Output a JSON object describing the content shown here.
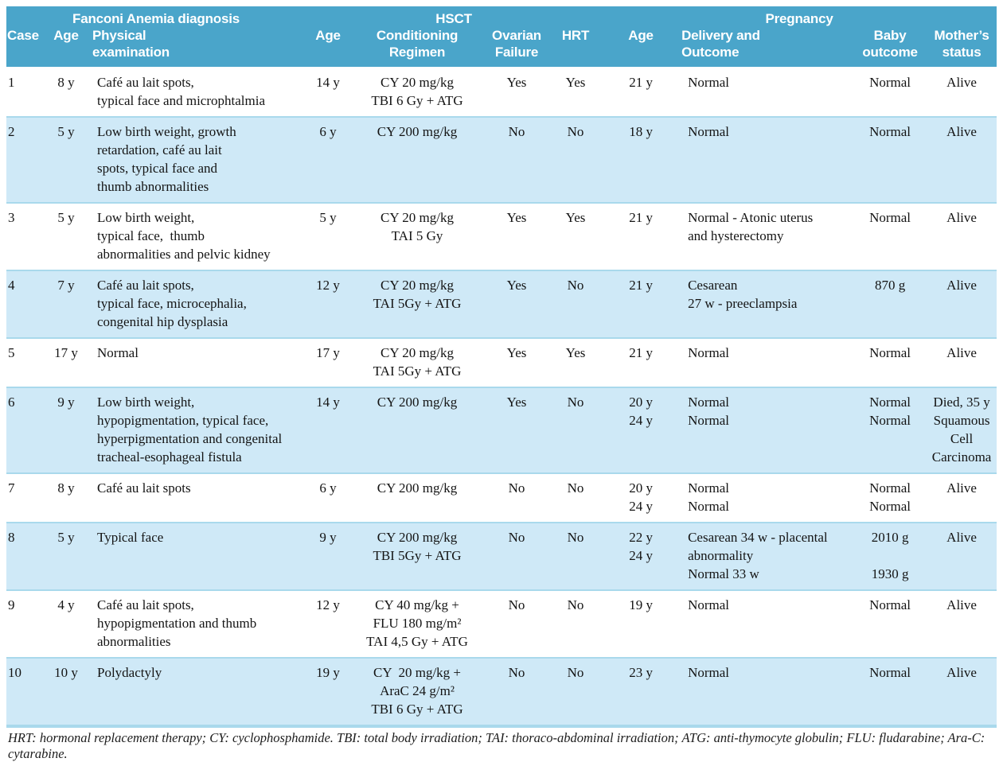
{
  "colors": {
    "header_bg": "#4aa5ca",
    "header_text": "#ffffff",
    "row_shade": "#cfe9f7",
    "row_plain": "#ffffff",
    "row_divider": "#a9d9ec",
    "bottom_rule": "#a9d9ec",
    "body_text": "#141414"
  },
  "table": {
    "group_headers": [
      {
        "label": "Fanconi Anemia diagnosis",
        "colspan": 3
      },
      {
        "label": "HSCT",
        "colspan": 4
      },
      {
        "label": "Pregnancy",
        "colspan": 4
      }
    ],
    "columns": [
      {
        "key": "case",
        "label": "Case",
        "align": "left"
      },
      {
        "key": "fa_age",
        "label": "Age",
        "align": "center"
      },
      {
        "key": "physical",
        "label": "Physical\nexamination",
        "align": "left"
      },
      {
        "key": "hsct_age",
        "label": "Age",
        "align": "center"
      },
      {
        "key": "regimen",
        "label": "Conditioning\nRegimen",
        "align": "center"
      },
      {
        "key": "ovarian_failure",
        "label": "Ovarian\nFailure",
        "align": "center"
      },
      {
        "key": "hrt",
        "label": "HRT",
        "align": "center"
      },
      {
        "key": "preg_age",
        "label": "Age",
        "align": "center"
      },
      {
        "key": "delivery",
        "label": "Delivery and\nOutcome",
        "align": "left"
      },
      {
        "key": "baby",
        "label": "Baby\noutcome",
        "align": "center"
      },
      {
        "key": "mother",
        "label": "Mother’s\nstatus",
        "align": "center"
      }
    ],
    "rows": [
      {
        "case": "1",
        "fa_age": "8 y",
        "physical": [
          "Café au lait spots,",
          "typical face and microphtalmia"
        ],
        "hsct_age": "14 y",
        "regimen": [
          "CY 20 mg/kg",
          "TBI 6 Gy + ATG"
        ],
        "ovarian_failure": "Yes",
        "hrt": "Yes",
        "preg_age": [
          "21 y"
        ],
        "delivery": [
          "Normal"
        ],
        "baby": [
          "Normal"
        ],
        "mother": [
          "Alive"
        ],
        "shaded": false
      },
      {
        "case": "2",
        "fa_age": "5 y",
        "physical": [
          "Low birth weight, growth",
          "retardation, café au lait",
          "spots, typical face and",
          "thumb abnormalities"
        ],
        "hsct_age": "6 y",
        "regimen": [
          "CY 200 mg/kg"
        ],
        "ovarian_failure": "No",
        "hrt": "No",
        "preg_age": [
          "18 y"
        ],
        "delivery": [
          "Normal"
        ],
        "baby": [
          "Normal"
        ],
        "mother": [
          "Alive"
        ],
        "shaded": true
      },
      {
        "case": "3",
        "fa_age": "5 y",
        "physical": [
          "Low birth weight,",
          "typical face,  thumb",
          "abnormalities and pelvic kidney"
        ],
        "hsct_age": "5 y",
        "regimen": [
          "CY 20 mg/kg",
          "TAI 5 Gy"
        ],
        "ovarian_failure": "Yes",
        "hrt": "Yes",
        "preg_age": [
          "21 y"
        ],
        "delivery": [
          "Normal - Atonic uterus",
          "and hysterectomy"
        ],
        "baby": [
          "Normal"
        ],
        "mother": [
          "Alive"
        ],
        "shaded": false
      },
      {
        "case": "4",
        "fa_age": "7 y",
        "physical": [
          "Café au lait spots,",
          "typical face, microcephalia,",
          "congenital hip dysplasia"
        ],
        "hsct_age": "12 y",
        "regimen": [
          "CY 20 mg/kg",
          "TAI 5Gy + ATG"
        ],
        "ovarian_failure": "Yes",
        "hrt": "No",
        "preg_age": [
          "21 y"
        ],
        "delivery": [
          "Cesarean",
          "27 w - preeclampsia"
        ],
        "baby": [
          "870 g"
        ],
        "mother": [
          "Alive"
        ],
        "shaded": true
      },
      {
        "case": "5",
        "fa_age": "17 y",
        "physical": [
          "Normal"
        ],
        "hsct_age": "17 y",
        "regimen": [
          "CY 20 mg/kg",
          "TAI 5Gy + ATG"
        ],
        "ovarian_failure": "Yes",
        "hrt": "Yes",
        "preg_age": [
          "21 y"
        ],
        "delivery": [
          "Normal"
        ],
        "baby": [
          "Normal"
        ],
        "mother": [
          "Alive"
        ],
        "shaded": false
      },
      {
        "case": "6",
        "fa_age": "9 y",
        "physical": [
          "Low birth weight,",
          "hypopigmentation, typical face,",
          "hyperpigmentation and congenital",
          "tracheal-esophageal fistula"
        ],
        "hsct_age": "14 y",
        "regimen": [
          "CY 200 mg/kg"
        ],
        "ovarian_failure": "Yes",
        "hrt": "No",
        "preg_age": [
          "20 y",
          "24 y"
        ],
        "delivery": [
          "Normal",
          "Normal"
        ],
        "baby": [
          "Normal",
          "Normal"
        ],
        "mother": [
          "Died, 35 y",
          "Squamous",
          "Cell",
          "Carcinoma"
        ],
        "shaded": true
      },
      {
        "case": "7",
        "fa_age": "8 y",
        "physical": [
          "Café au lait spots"
        ],
        "hsct_age": "6 y",
        "regimen": [
          "CY 200 mg/kg"
        ],
        "ovarian_failure": "No",
        "hrt": "No",
        "preg_age": [
          "20 y",
          "24 y"
        ],
        "delivery": [
          "Normal",
          "Normal"
        ],
        "baby": [
          "Normal",
          "Normal"
        ],
        "mother": [
          "Alive"
        ],
        "shaded": false
      },
      {
        "case": "8",
        "fa_age": "5 y",
        "physical": [
          "Typical face"
        ],
        "hsct_age": "9 y",
        "regimen": [
          "CY 200 mg/kg",
          "TBI 5Gy + ATG"
        ],
        "ovarian_failure": "No",
        "hrt": "No",
        "preg_age": [
          "22 y",
          "24 y"
        ],
        "delivery": [
          "Cesarean 34 w - placental",
          "abnormality",
          "Normal 33 w"
        ],
        "baby": [
          "2010 g",
          "",
          "1930 g"
        ],
        "mother": [
          "Alive"
        ],
        "shaded": true
      },
      {
        "case": "9",
        "fa_age": "4 y",
        "physical": [
          "Café au lait spots,",
          "hypopigmentation and thumb",
          "abnormalities"
        ],
        "hsct_age": "12 y",
        "regimen": [
          "CY 40 mg/kg +",
          "FLU 180 mg/m²",
          "TAI 4,5 Gy + ATG"
        ],
        "ovarian_failure": "No",
        "hrt": "No",
        "preg_age": [
          "19 y"
        ],
        "delivery": [
          "Normal"
        ],
        "baby": [
          "Normal"
        ],
        "mother": [
          "Alive"
        ],
        "shaded": false
      },
      {
        "case": "10",
        "fa_age": "10 y",
        "physical": [
          "Polydactyly"
        ],
        "hsct_age": "19 y",
        "regimen": [
          "CY  20 mg/kg +",
          "AraC 24 g/m²",
          "TBI 6 Gy + ATG"
        ],
        "ovarian_failure": "No",
        "hrt": "No",
        "preg_age": [
          "23 y"
        ],
        "delivery": [
          "Normal"
        ],
        "baby": [
          "Normal"
        ],
        "mother": [
          "Alive"
        ],
        "shaded": true
      }
    ],
    "footnote": "HRT: hormonal replacement therapy; CY: cyclophosphamide. TBI: total body irradiation; TAI: thoraco-abdominal irradiation;  ATG: anti-thymocyte globulin; FLU: fludarabine; Ara-C: cytarabine."
  }
}
